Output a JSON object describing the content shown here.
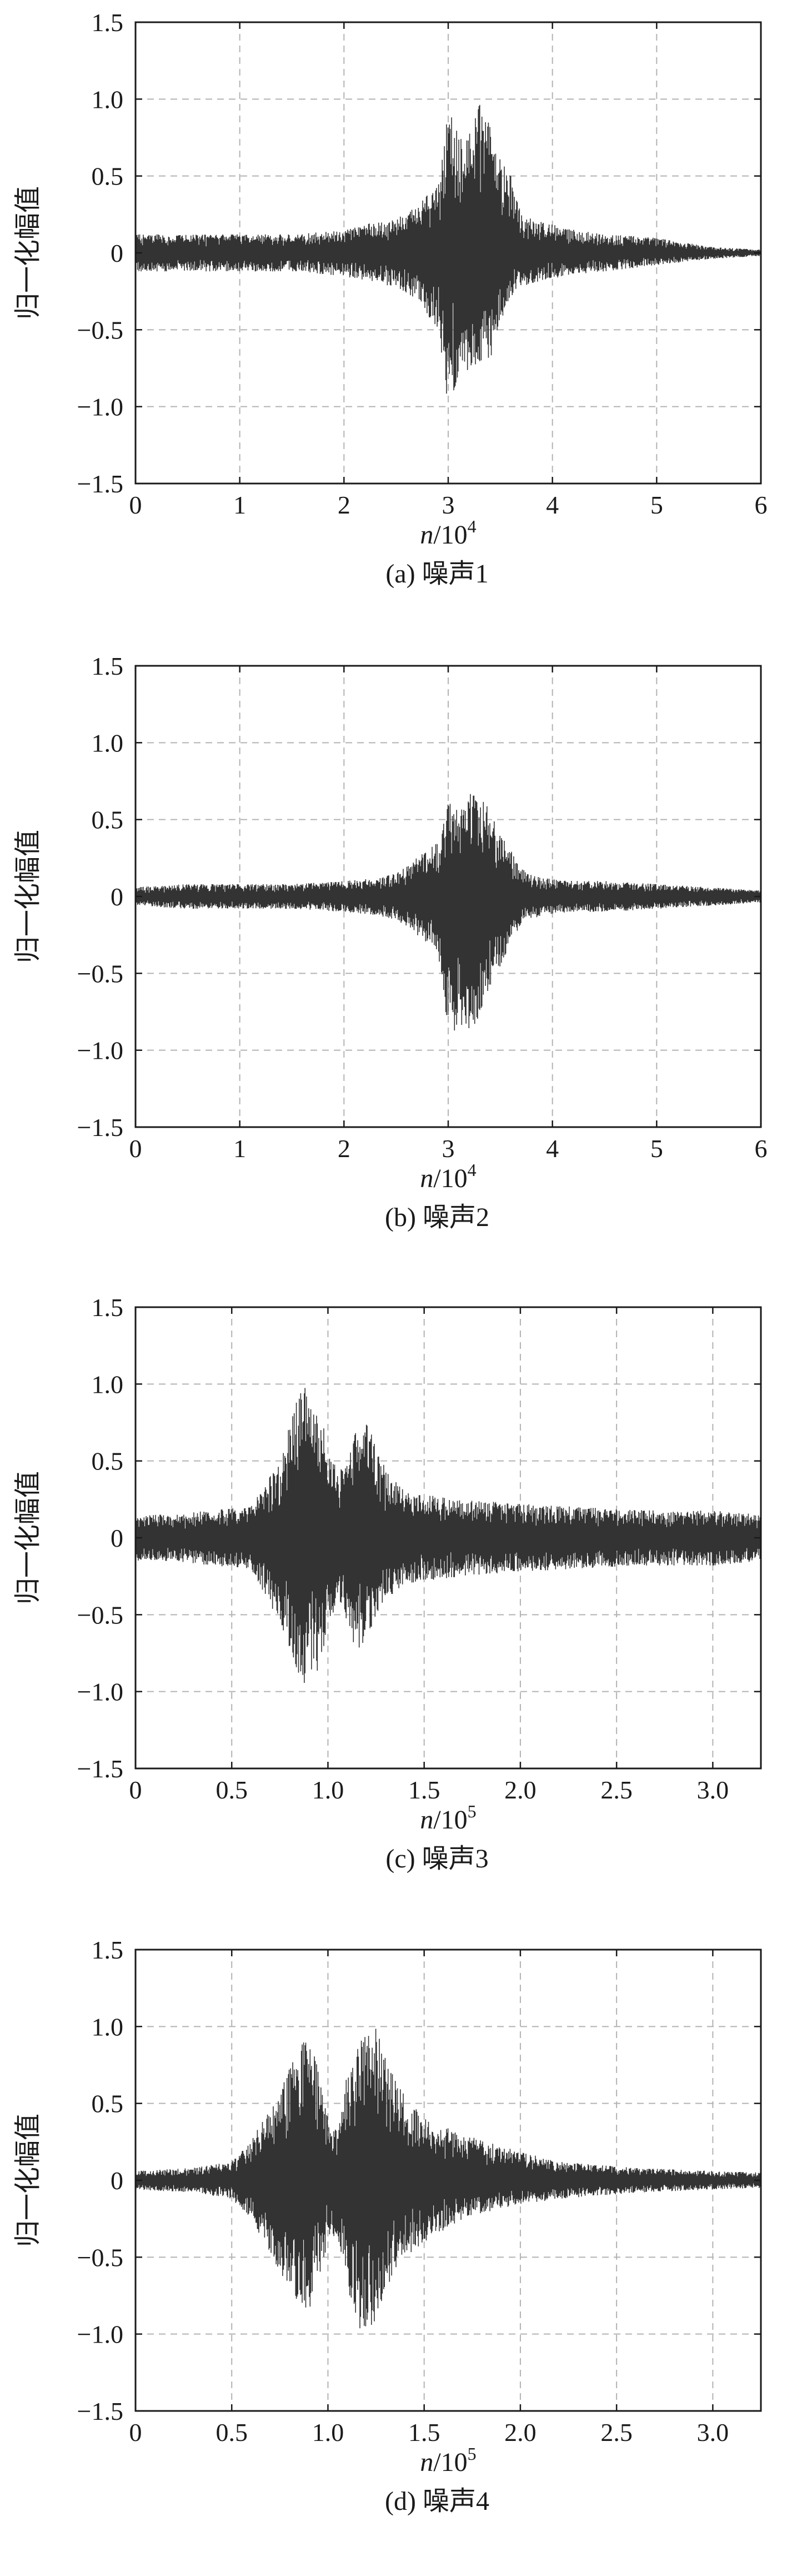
{
  "chart_data": [
    {
      "type": "line",
      "caption": "(a) 噪声1",
      "xlabel_italic": "n",
      "xlabel_rest": "/10",
      "xlabel_exp": "4",
      "ylabel": "归一化幅值",
      "xlim": [
        0,
        6
      ],
      "ylim": [
        -1.5,
        1.5
      ],
      "x_ticks": [
        0,
        1,
        2,
        3,
        4,
        5,
        6
      ],
      "x_tick_labels": [
        "0",
        "1",
        "2",
        "3",
        "4",
        "5",
        "6"
      ],
      "y_ticks": [
        1.5,
        1.0,
        0.5,
        0,
        -0.5,
        -1.0,
        -1.5
      ],
      "y_tick_labels": [
        "1.5",
        "1.0",
        "0.5",
        "0",
        "−0.5",
        "−1.0",
        "−1.5"
      ],
      "grid": true,
      "series": [
        {
          "envelope_x": [
            0,
            0.5,
            1.0,
            1.5,
            2.0,
            2.3,
            2.5,
            2.7,
            2.9,
            3.0,
            3.1,
            3.2,
            3.3,
            3.4,
            3.5,
            3.6,
            3.7,
            3.9,
            4.2,
            4.5,
            5.0,
            5.5,
            6.0
          ],
          "envelope_upper": [
            0.12,
            0.12,
            0.12,
            0.12,
            0.15,
            0.2,
            0.22,
            0.3,
            0.45,
            0.92,
            0.8,
            0.78,
            1.0,
            0.85,
            0.6,
            0.5,
            0.25,
            0.2,
            0.15,
            0.12,
            0.1,
            0.04,
            0.02
          ],
          "envelope_lower": [
            -0.12,
            -0.12,
            -0.12,
            -0.12,
            -0.15,
            -0.2,
            -0.22,
            -0.3,
            -0.5,
            -1.0,
            -0.8,
            -0.8,
            -0.75,
            -0.7,
            -0.45,
            -0.3,
            -0.22,
            -0.18,
            -0.14,
            -0.12,
            -0.08,
            -0.04,
            -0.02
          ]
        }
      ]
    },
    {
      "type": "line",
      "caption": "(b) 噪声2",
      "xlabel_italic": "n",
      "xlabel_rest": "/10",
      "xlabel_exp": "4",
      "ylabel": "归一化幅值",
      "xlim": [
        0,
        6
      ],
      "ylim": [
        -1.5,
        1.5
      ],
      "x_ticks": [
        0,
        1,
        2,
        3,
        4,
        5,
        6
      ],
      "x_tick_labels": [
        "0",
        "1",
        "2",
        "3",
        "4",
        "5",
        "6"
      ],
      "y_ticks": [
        1.5,
        1.0,
        0.5,
        0,
        -0.5,
        -1.0,
        -1.5
      ],
      "y_tick_labels": [
        "1.5",
        "1.0",
        "0.5",
        "0",
        "−0.5",
        "−1.0",
        "−1.5"
      ],
      "grid": true,
      "series": [
        {
          "envelope_x": [
            0,
            0.5,
            1.0,
            1.5,
            2.0,
            2.3,
            2.5,
            2.7,
            2.9,
            3.0,
            3.1,
            3.2,
            3.3,
            3.4,
            3.5,
            3.6,
            3.7,
            3.9,
            4.2,
            4.5,
            5.0,
            5.5,
            6.0
          ],
          "envelope_upper": [
            0.06,
            0.08,
            0.08,
            0.08,
            0.1,
            0.12,
            0.15,
            0.25,
            0.35,
            0.62,
            0.55,
            0.68,
            0.68,
            0.55,
            0.4,
            0.3,
            0.18,
            0.12,
            0.1,
            0.1,
            0.08,
            0.06,
            0.04
          ],
          "envelope_lower": [
            -0.06,
            -0.08,
            -0.08,
            -0.08,
            -0.1,
            -0.12,
            -0.15,
            -0.25,
            -0.35,
            -0.98,
            -0.8,
            -1.0,
            -0.75,
            -0.6,
            -0.45,
            -0.3,
            -0.18,
            -0.12,
            -0.1,
            -0.1,
            -0.08,
            -0.06,
            -0.04
          ]
        }
      ]
    },
    {
      "type": "line",
      "caption": "(c) 噪声3",
      "xlabel_italic": "n",
      "xlabel_rest": "/10",
      "xlabel_exp": "5",
      "ylabel": "归一化幅值",
      "xlim": [
        0,
        3.25
      ],
      "ylim": [
        -1.5,
        1.5
      ],
      "x_ticks": [
        0,
        0.5,
        1.0,
        1.5,
        2.0,
        2.5,
        3.0
      ],
      "x_tick_labels": [
        "0",
        "0.5",
        "1.0",
        "1.5",
        "2.0",
        "2.5",
        "3.0"
      ],
      "y_ticks": [
        1.5,
        1.0,
        0.5,
        0,
        -0.5,
        -1.0,
        -1.5
      ],
      "y_tick_labels": [
        "1.5",
        "1.0",
        "0.5",
        "0",
        "−0.5",
        "−1.0",
        "−1.5"
      ],
      "grid": true,
      "series": [
        {
          "envelope_x": [
            0,
            0.2,
            0.4,
            0.6,
            0.75,
            0.85,
            0.9,
            0.95,
            1.0,
            1.05,
            1.1,
            1.15,
            1.2,
            1.25,
            1.3,
            1.4,
            1.5,
            1.7,
            2.0,
            2.3,
            2.6,
            3.0,
            3.25
          ],
          "envelope_upper": [
            0.15,
            0.15,
            0.18,
            0.2,
            0.5,
            0.95,
            1.0,
            0.8,
            0.65,
            0.4,
            0.55,
            0.7,
            0.75,
            0.6,
            0.45,
            0.3,
            0.28,
            0.25,
            0.22,
            0.2,
            0.18,
            0.18,
            0.15
          ],
          "envelope_lower": [
            -0.15,
            -0.15,
            -0.18,
            -0.2,
            -0.55,
            -0.9,
            -0.98,
            -0.85,
            -0.6,
            -0.4,
            -0.55,
            -0.75,
            -0.7,
            -0.55,
            -0.4,
            -0.3,
            -0.28,
            -0.25,
            -0.22,
            -0.2,
            -0.18,
            -0.18,
            -0.15
          ]
        }
      ]
    },
    {
      "type": "line",
      "caption": "(d) 噪声4",
      "xlabel_italic": "n",
      "xlabel_rest": "/10",
      "xlabel_exp": "5",
      "ylabel": "归一化幅值",
      "xlim": [
        0,
        3.25
      ],
      "ylim": [
        -1.5,
        1.5
      ],
      "x_ticks": [
        0,
        0.5,
        1.0,
        1.5,
        2.0,
        2.5,
        3.0
      ],
      "x_tick_labels": [
        "0",
        "0.5",
        "1.0",
        "1.5",
        "2.0",
        "2.5",
        "3.0"
      ],
      "y_ticks": [
        1.5,
        1.0,
        0.5,
        0,
        -0.5,
        -1.0,
        -1.5
      ],
      "y_tick_labels": [
        "1.5",
        "1.0",
        "0.5",
        "0",
        "−0.5",
        "−1.0",
        "−1.5"
      ],
      "grid": true,
      "series": [
        {
          "envelope_x": [
            0,
            0.3,
            0.5,
            0.6,
            0.75,
            0.85,
            0.9,
            0.95,
            1.0,
            1.05,
            1.1,
            1.15,
            1.2,
            1.25,
            1.3,
            1.4,
            1.5,
            1.7,
            1.9,
            2.2,
            2.6,
            3.0,
            3.25
          ],
          "envelope_upper": [
            0.06,
            0.08,
            0.12,
            0.25,
            0.6,
            0.85,
            1.0,
            0.7,
            0.4,
            0.35,
            0.7,
            0.85,
            1.0,
            1.0,
            0.8,
            0.55,
            0.4,
            0.3,
            0.22,
            0.12,
            0.08,
            0.06,
            0.05
          ],
          "envelope_lower": [
            -0.06,
            -0.08,
            -0.12,
            -0.25,
            -0.6,
            -0.8,
            -0.85,
            -0.65,
            -0.4,
            -0.35,
            -0.7,
            -0.95,
            -1.0,
            -0.9,
            -0.7,
            -0.5,
            -0.4,
            -0.25,
            -0.18,
            -0.12,
            -0.08,
            -0.06,
            -0.05
          ]
        }
      ]
    }
  ]
}
